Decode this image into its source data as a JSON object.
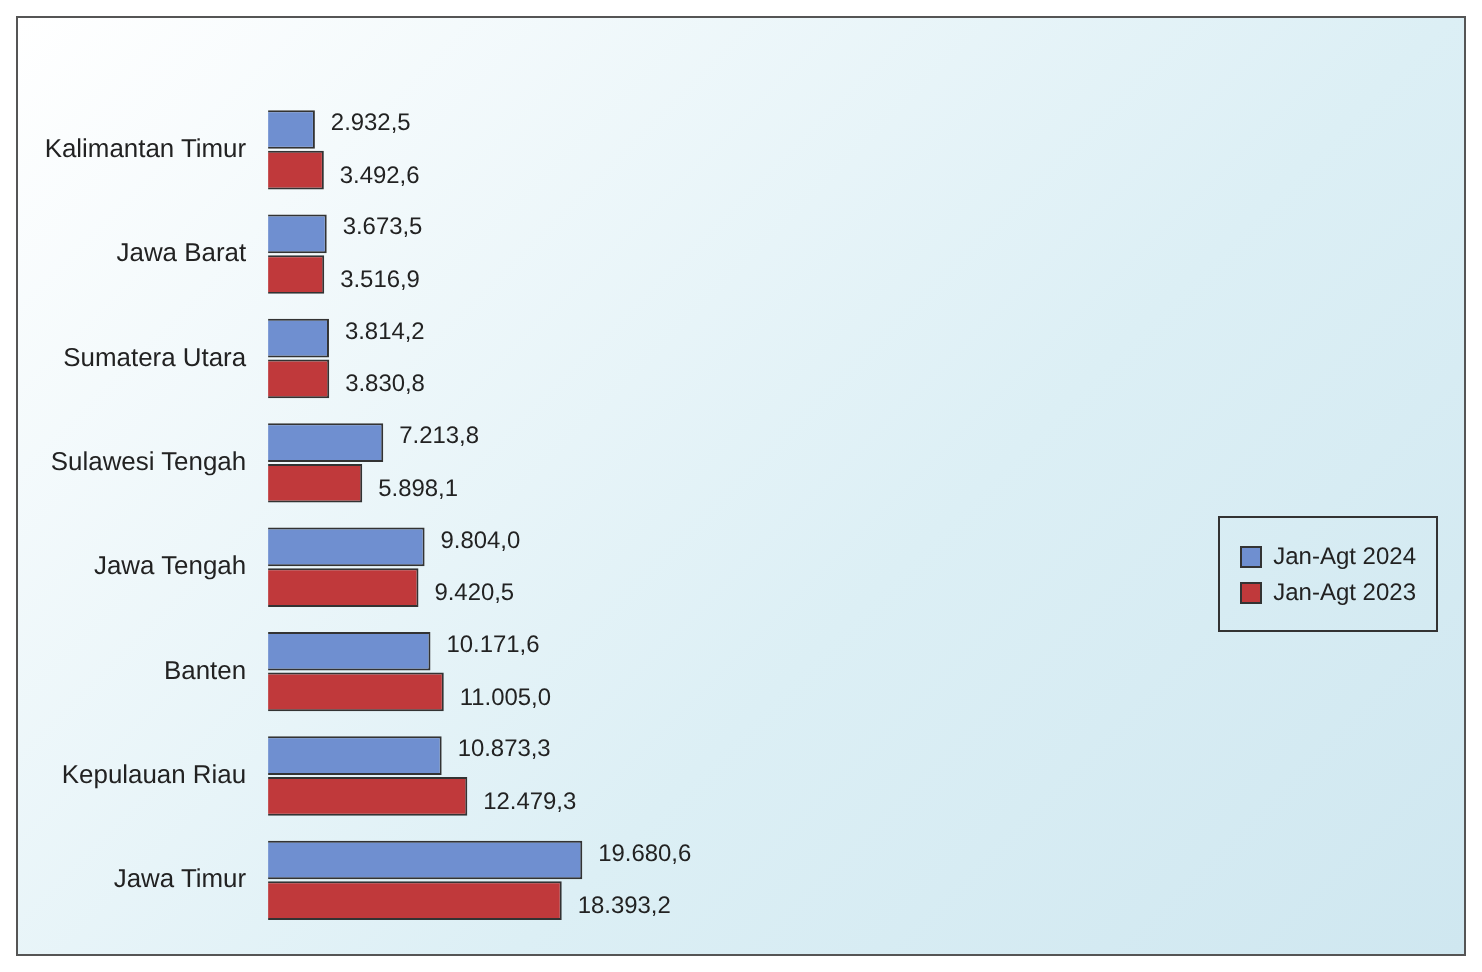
{
  "chart_data": {
    "type": "bar",
    "orientation": "horizontal",
    "categories": [
      "Kalimantan Timur",
      "Jawa Barat",
      "Sumatera Utara",
      "Sulawesi Tengah",
      "Jawa Tengah",
      "Banten",
      "Kepulauan Riau",
      "Jawa Timur"
    ],
    "series": [
      {
        "name": "Jan-Agt 2024",
        "color": "#6f8fd0",
        "values": [
          2932.5,
          3673.5,
          3814.2,
          7213.8,
          9804.0,
          10171.6,
          10873.3,
          19680.6
        ],
        "value_labels": [
          "2.932,5",
          "3.673,5",
          "3.814,2",
          "7.213,8",
          "9.804,0",
          "10.171,6",
          "10.873,3",
          "19.680,6"
        ]
      },
      {
        "name": "Jan-Agt 2023",
        "color": "#c0393b",
        "values": [
          3492.6,
          3516.9,
          3830.8,
          5898.1,
          9420.5,
          11005.0,
          12479.3,
          18393.2
        ],
        "value_labels": [
          "3.492,6",
          "3.516,9",
          "3.830,8",
          "5.898,1",
          "9.420,5",
          "11.005,0",
          "12.479,3",
          "18.393,2"
        ]
      }
    ],
    "legend": "right",
    "grid": false
  }
}
